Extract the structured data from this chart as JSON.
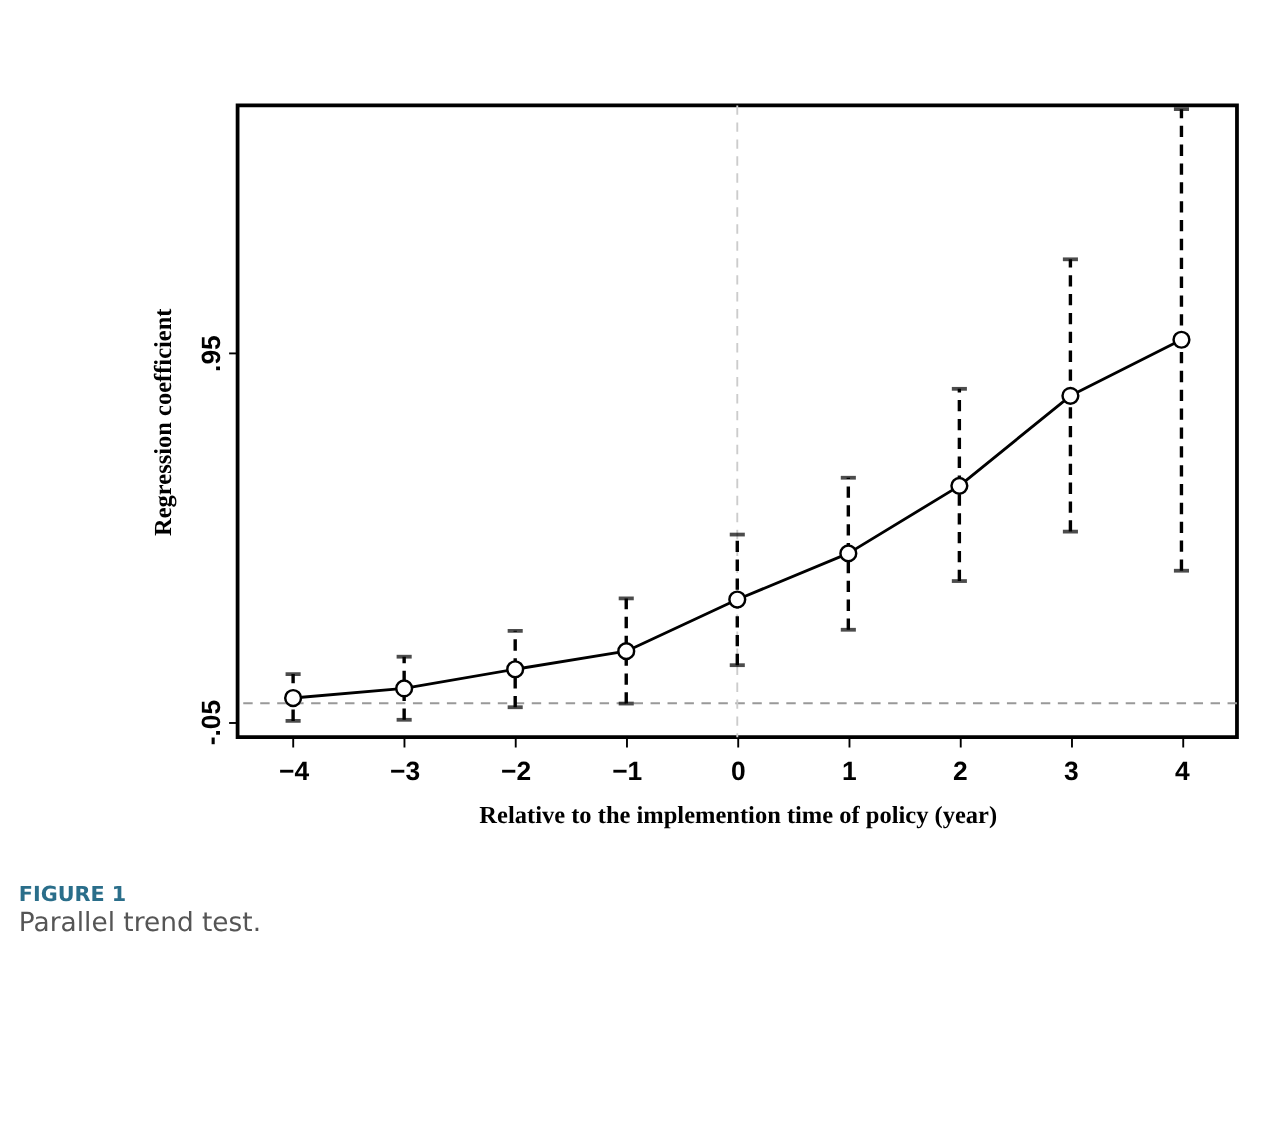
{
  "chart_data": {
    "type": "line",
    "xlabel": "Relative to the implemention time of policy (year)",
    "ylabel": "Regression coefficient",
    "x": [
      -4,
      -3,
      -2,
      -1,
      0,
      1,
      2,
      3,
      4
    ],
    "series": [
      {
        "color": "#000000",
        "values": [
          0.014,
          0.04,
          0.092,
          0.141,
          0.281,
          0.406,
          0.589,
          0.833,
          0.985
        ],
        "errors": [
          [
            -0.048,
            0.079
          ],
          [
            -0.045,
            0.126
          ],
          [
            -0.011,
            0.196
          ],
          [
            -0.001,
            0.284
          ],
          [
            0.103,
            0.457
          ],
          [
            0.199,
            0.611
          ],
          [
            0.331,
            0.852
          ],
          [
            0.465,
            1.203
          ],
          [
            0.359,
            1.61
          ]
        ]
      }
    ],
    "xlim": [
      -4.5,
      4.5
    ],
    "ylim": [
      -0.092,
      1.62
    ],
    "xticks": [
      -4,
      -3,
      -2,
      -1,
      0,
      1,
      2,
      3,
      4
    ],
    "yticks": [
      {
        "value": -0.05,
        "label": "-.05"
      },
      {
        "value": 0.95,
        "label": ".95"
      }
    ],
    "ref_lines": [
      {
        "axis": "y",
        "value": 0,
        "color": "#999999",
        "line_style": "dashed"
      },
      {
        "axis": "x",
        "value": 0,
        "color": "#cccccc",
        "line_style": "dashed"
      }
    ],
    "marker": "circle",
    "line_style": "solid",
    "grid": false,
    "annotations": [
      "FIGURE 1",
      "Parallel trend test."
    ]
  }
}
